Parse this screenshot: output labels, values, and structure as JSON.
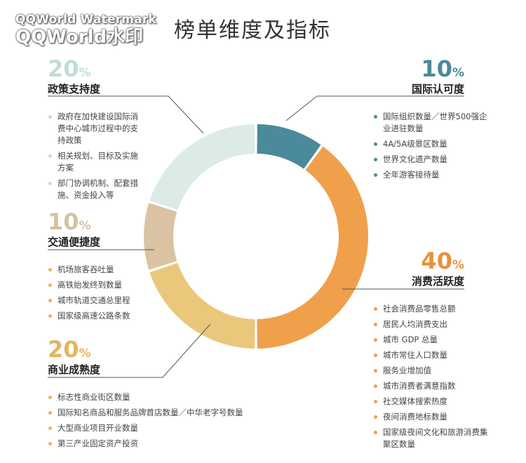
{
  "watermark": {
    "line1": "QQWorld Watermark",
    "line2": "QQWorld水印"
  },
  "title": "榜单维度及指标",
  "chart_data": {
    "type": "pie",
    "title": "榜单维度及指标",
    "slices": [
      {
        "label": "国际认可度",
        "percent": 10,
        "color": "#4a8a9a",
        "items": [
          "国际组织数量／世界500强企业进驻数量",
          "4A/5A级景区数量",
          "世界文化遗产数量",
          "全年游客接待量"
        ]
      },
      {
        "label": "消费活跃度",
        "percent": 40,
        "color": "#f0a04b",
        "items": [
          "社会消费品零售总额",
          "居民人均消费支出",
          "城市 GDP 总量",
          "城市常住人口数量",
          "服务业增加值",
          "城市消费者满意指数",
          "社交媒体搜索热度",
          "夜间消费地标数量",
          "国家级夜间文化和旅游消费集聚区数量"
        ]
      },
      {
        "label": "商业成熟度",
        "percent": 20,
        "color": "#eac77a",
        "items": [
          "标志性商业街区数量",
          "国际知名商品和服务品牌首店数量／中华老字号数量",
          "大型商业项目开业数量",
          "第三产业固定资产投资"
        ]
      },
      {
        "label": "交通便捷度",
        "percent": 10,
        "color": "#d9c3a3",
        "items": [
          "机场旅客吞吐量",
          "高铁始发终到数量",
          "城市轨道交通总里程",
          "国家级高速公路条数"
        ]
      },
      {
        "label": "政策支持度",
        "percent": 20,
        "color": "#dcebe6",
        "items": [
          "政府在加快建设国际消费中心城市过程中的支持政策",
          "相关规划、目标及实施方案",
          "部门协调机制、配套措施、资金投入等"
        ]
      }
    ],
    "percent_sign": "%",
    "legend": "none"
  },
  "colors": {
    "intl_pct": "#4a8a9a",
    "consume_pct": "#e8923a",
    "commerce_pct": "#e3b55f",
    "traffic_pct": "#d5c2a4",
    "policy_pct": "#c2ddd5",
    "leader_line": "#555555"
  }
}
